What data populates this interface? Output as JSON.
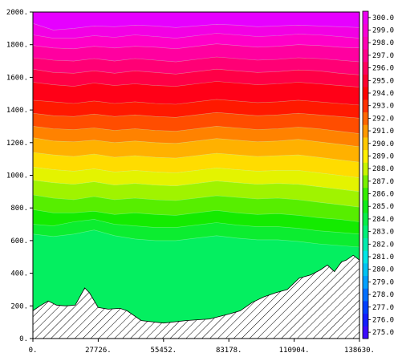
{
  "chart_data": {
    "type": "heatmap",
    "title": "",
    "xlabel": "",
    "ylabel": "",
    "xlim": [
      0,
      138630
    ],
    "ylim": [
      0,
      2000
    ],
    "x_ticks": [
      "0.",
      "27726.",
      "55452.",
      "83178.",
      "110904.",
      "138630."
    ],
    "x_tick_values": [
      0,
      27726,
      55452,
      83178,
      110904,
      138630
    ],
    "y_ticks": [
      "0.",
      "200.",
      "400.",
      "600.",
      "800.",
      "1000.",
      "1200.",
      "1400.",
      "1600.",
      "1800.",
      "2000."
    ],
    "y_tick_values": [
      0,
      200,
      400,
      600,
      800,
      1000,
      1200,
      1400,
      1600,
      1800,
      2000
    ],
    "colorbar": {
      "min": 274.5,
      "max": 300.5,
      "labels": [
        "275.0",
        "276.0",
        "277.0",
        "278.0",
        "279.0",
        "280.0",
        "281.0",
        "282.0",
        "283.0",
        "284.0",
        "285.0",
        "286.0",
        "287.0",
        "288.0",
        "289.0",
        "290.0",
        "291.0",
        "292.0",
        "293.0",
        "294.0",
        "295.0",
        "296.0",
        "297.0",
        "298.0",
        "299.0",
        "300.0"
      ],
      "label_values": [
        275,
        276,
        277,
        278,
        279,
        280,
        281,
        282,
        283,
        284,
        285,
        286,
        287,
        288,
        289,
        290,
        291,
        292,
        293,
        294,
        295,
        296,
        297,
        298,
        299,
        300
      ]
    },
    "contour_levels": [
      {
        "value": 300,
        "height": [
          1930,
          1890,
          1900,
          1915,
          1910,
          1920,
          1915,
          1905,
          1915,
          1925,
          1920,
          1910,
          1915,
          1920,
          1915,
          1910,
          1905
        ]
      },
      {
        "value": 299,
        "height": [
          1860,
          1840,
          1840,
          1855,
          1845,
          1860,
          1850,
          1840,
          1855,
          1870,
          1860,
          1850,
          1855,
          1865,
          1860,
          1850,
          1840
        ]
      },
      {
        "value": 298,
        "height": [
          1795,
          1780,
          1775,
          1790,
          1780,
          1790,
          1785,
          1775,
          1790,
          1805,
          1795,
          1785,
          1790,
          1800,
          1795,
          1785,
          1780
        ]
      },
      {
        "value": 297,
        "height": [
          1720,
          1705,
          1700,
          1715,
          1700,
          1715,
          1705,
          1695,
          1710,
          1725,
          1715,
          1705,
          1710,
          1720,
          1715,
          1705,
          1695
        ]
      },
      {
        "value": 296,
        "height": [
          1650,
          1630,
          1625,
          1640,
          1625,
          1640,
          1630,
          1620,
          1635,
          1650,
          1640,
          1630,
          1635,
          1645,
          1640,
          1625,
          1615
        ]
      },
      {
        "value": 295,
        "height": [
          1570,
          1555,
          1545,
          1565,
          1550,
          1560,
          1550,
          1545,
          1560,
          1575,
          1565,
          1555,
          1560,
          1570,
          1560,
          1550,
          1540
        ]
      },
      {
        "value": 294,
        "height": [
          1460,
          1450,
          1440,
          1455,
          1440,
          1450,
          1440,
          1435,
          1450,
          1465,
          1455,
          1445,
          1450,
          1460,
          1450,
          1440,
          1430
        ]
      },
      {
        "value": 293,
        "height": [
          1380,
          1365,
          1360,
          1375,
          1360,
          1370,
          1360,
          1355,
          1370,
          1385,
          1375,
          1365,
          1370,
          1380,
          1370,
          1360,
          1350
        ]
      },
      {
        "value": 292,
        "height": [
          1300,
          1285,
          1280,
          1290,
          1275,
          1285,
          1275,
          1270,
          1285,
          1300,
          1290,
          1280,
          1285,
          1295,
          1285,
          1270,
          1255
        ]
      },
      {
        "value": 291,
        "height": [
          1230,
          1210,
          1205,
          1215,
          1200,
          1210,
          1200,
          1195,
          1210,
          1225,
          1215,
          1205,
          1210,
          1220,
          1205,
          1190,
          1175
        ]
      },
      {
        "value": 290,
        "height": [
          1140,
          1125,
          1115,
          1130,
          1110,
          1120,
          1110,
          1105,
          1120,
          1135,
          1125,
          1115,
          1120,
          1125,
          1110,
          1095,
          1080
        ]
      },
      {
        "value": 289,
        "height": [
          1050,
          1035,
          1025,
          1040,
          1020,
          1030,
          1020,
          1015,
          1030,
          1045,
          1035,
          1025,
          1030,
          1030,
          1015,
          1000,
          985
        ]
      },
      {
        "value": 288,
        "height": [
          970,
          955,
          945,
          960,
          940,
          950,
          940,
          935,
          950,
          965,
          955,
          945,
          950,
          945,
          930,
          915,
          900
        ]
      },
      {
        "value": 287,
        "height": [
          880,
          860,
          850,
          870,
          850,
          860,
          850,
          845,
          860,
          875,
          865,
          855,
          860,
          850,
          835,
          820,
          805
        ]
      },
      {
        "value": 286,
        "height": [
          790,
          770,
          770,
          780,
          760,
          770,
          760,
          755,
          770,
          785,
          770,
          760,
          765,
          755,
          740,
          730,
          715
        ]
      },
      {
        "value": 285,
        "height": [
          700,
          690,
          715,
          730,
          700,
          690,
          680,
          680,
          695,
          710,
          695,
          685,
          685,
          675,
          660,
          650,
          640
        ]
      },
      {
        "value": 284,
        "height": [
          640,
          625,
          640,
          665,
          630,
          610,
          600,
          600,
          615,
          630,
          615,
          605,
          605,
          595,
          580,
          570,
          560
        ]
      }
    ],
    "terrain": {
      "x": [
        0,
        3000,
        6500,
        10000,
        14000,
        18000,
        22000,
        24000,
        27726,
        32000,
        37000,
        40000,
        46000,
        55452,
        65000,
        75000,
        83178,
        88000,
        93000,
        98000,
        103000,
        108000,
        113000,
        118000,
        122000,
        125000,
        128000,
        131000,
        133000,
        136000,
        138630
      ],
      "height": [
        170,
        200,
        230,
        205,
        200,
        205,
        310,
        280,
        190,
        180,
        185,
        170,
        110,
        95,
        110,
        120,
        150,
        170,
        220,
        255,
        280,
        300,
        370,
        390,
        420,
        450,
        410,
        470,
        480,
        510,
        480
      ]
    }
  }
}
